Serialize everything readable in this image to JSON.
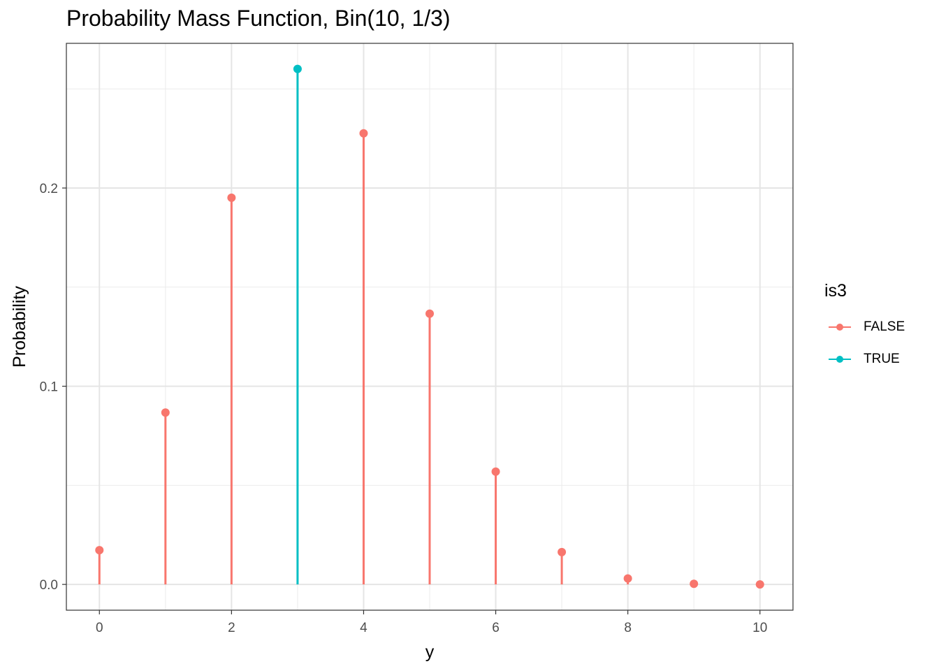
{
  "chart_data": {
    "type": "lollipop",
    "title": "Probability Mass Function, Bin(10, 1/3)",
    "xlabel": "y",
    "ylabel": "Probability",
    "x": [
      0,
      1,
      2,
      3,
      4,
      5,
      6,
      7,
      8,
      9,
      10
    ],
    "values": [
      0.0173,
      0.0867,
      0.1951,
      0.2601,
      0.2276,
      0.1366,
      0.0569,
      0.0163,
      0.003,
      0.0003,
      0.0
    ],
    "is3": [
      "FALSE",
      "FALSE",
      "FALSE",
      "TRUE",
      "FALSE",
      "FALSE",
      "FALSE",
      "FALSE",
      "FALSE",
      "FALSE",
      "FALSE"
    ],
    "xlim": [
      -0.5,
      10.5
    ],
    "ylim": [
      -0.013,
      0.273
    ],
    "x_ticks": [
      0,
      2,
      4,
      6,
      8,
      10
    ],
    "y_ticks": [
      0.0,
      0.1,
      0.2
    ],
    "y_tick_labels": [
      "0.0",
      "0.1",
      "0.2"
    ],
    "grid": true,
    "legend": {
      "title": "is3",
      "position": "right",
      "entries": [
        {
          "label": "FALSE",
          "color": "#F8766D"
        },
        {
          "label": "TRUE",
          "color": "#00BFC4"
        }
      ]
    }
  }
}
